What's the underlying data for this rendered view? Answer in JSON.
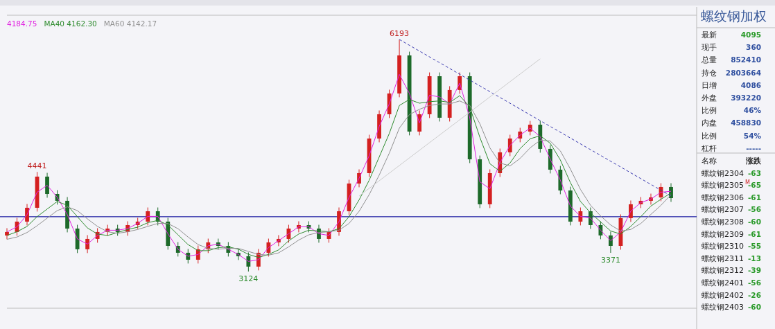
{
  "chart_data": [
    {
      "type": "candlestick",
      "categories": [
        null,
        null,
        null,
        null,
        null,
        null,
        null,
        null,
        null,
        null,
        null,
        null,
        null,
        null,
        null,
        null,
        null,
        null,
        null,
        null,
        null,
        null,
        null,
        null,
        null,
        null,
        null,
        null,
        null,
        null,
        null,
        null,
        null,
        null,
        null,
        null,
        null,
        null,
        null,
        null,
        null,
        null,
        null,
        null,
        null,
        null,
        null,
        null,
        null,
        null,
        null,
        null,
        null,
        null,
        null,
        null,
        null,
        null,
        null,
        null,
        null,
        null,
        null,
        null,
        null,
        null,
        null
      ],
      "ohlc": [
        [
          3600,
          3697,
          3550,
          3647
        ],
        [
          3647,
          3834,
          3597,
          3784
        ],
        [
          3784,
          4017,
          3734,
          3967
        ],
        [
          3967,
          4441,
          3917,
          4379
        ],
        [
          4379,
          4429,
          4100,
          4150
        ],
        [
          4150,
          4200,
          4009,
          4059
        ],
        [
          4059,
          4109,
          3642,
          3692
        ],
        [
          3692,
          3742,
          3368,
          3418
        ],
        [
          3418,
          3605,
          3368,
          3555
        ],
        [
          3555,
          3697,
          3505,
          3647
        ],
        [
          3647,
          3742,
          3597,
          3692
        ],
        [
          3692,
          3742,
          3597,
          3647
        ],
        [
          3647,
          3788,
          3597,
          3738
        ],
        [
          3738,
          3834,
          3688,
          3784
        ],
        [
          3784,
          3971,
          3734,
          3921
        ],
        [
          3921,
          3971,
          3734,
          3784
        ],
        [
          3784,
          3834,
          3413,
          3463
        ],
        [
          3463,
          3513,
          3322,
          3372
        ],
        [
          3372,
          3422,
          3230,
          3280
        ],
        [
          3280,
          3468,
          3230,
          3418
        ],
        [
          3418,
          3559,
          3368,
          3509
        ],
        [
          3509,
          3559,
          3413,
          3463
        ],
        [
          3463,
          3513,
          3322,
          3372
        ],
        [
          3372,
          3422,
          3276,
          3326
        ],
        [
          3326,
          3376,
          3124,
          3189
        ],
        [
          3189,
          3422,
          3139,
          3372
        ],
        [
          3372,
          3559,
          3322,
          3509
        ],
        [
          3509,
          3605,
          3459,
          3555
        ],
        [
          3555,
          3742,
          3505,
          3692
        ],
        [
          3692,
          3788,
          3642,
          3738
        ],
        [
          3738,
          3788,
          3642,
          3692
        ],
        [
          3692,
          3742,
          3505,
          3555
        ],
        [
          3555,
          3697,
          3505,
          3647
        ],
        [
          3647,
          3971,
          3597,
          3921
        ],
        [
          3921,
          4338,
          3871,
          4288
        ],
        [
          4288,
          4475,
          4238,
          4425
        ],
        [
          4425,
          4933,
          4375,
          4883
        ],
        [
          4883,
          5254,
          4833,
          5204
        ],
        [
          5204,
          5529,
          5154,
          5479
        ],
        [
          5479,
          6193,
          5429,
          5982
        ],
        [
          5982,
          6032,
          4925,
          4975
        ],
        [
          4975,
          5254,
          4925,
          5204
        ],
        [
          5204,
          5757,
          5154,
          5707
        ],
        [
          5707,
          5757,
          5108,
          5158
        ],
        [
          5158,
          5575,
          5108,
          5525
        ],
        [
          5525,
          5757,
          5475,
          5707
        ],
        [
          5707,
          5757,
          4558,
          4608
        ],
        [
          4608,
          4658,
          3963,
          4013
        ],
        [
          4013,
          4475,
          3963,
          4425
        ],
        [
          4425,
          4750,
          4375,
          4700
        ],
        [
          4700,
          4933,
          4650,
          4883
        ],
        [
          4883,
          5025,
          4833,
          4975
        ],
        [
          4975,
          5116,
          4925,
          5066
        ],
        [
          5066,
          5116,
          4696,
          4746
        ],
        [
          4746,
          4796,
          4421,
          4471
        ],
        [
          4471,
          4521,
          4146,
          4196
        ],
        [
          4196,
          4246,
          3734,
          3784
        ],
        [
          3784,
          3971,
          3734,
          3921
        ],
        [
          3921,
          3971,
          3688,
          3738
        ],
        [
          3738,
          3788,
          3551,
          3601
        ],
        [
          3601,
          3651,
          3371,
          3463
        ],
        [
          3463,
          3880,
          3413,
          3830
        ],
        [
          3830,
          4063,
          3780,
          4013
        ],
        [
          4013,
          4109,
          3963,
          4059
        ],
        [
          4059,
          4154,
          4009,
          4104
        ],
        [
          4104,
          4292,
          4054,
          4242
        ],
        [
          4242,
          4292,
          4045,
          4095
        ]
      ],
      "series": [
        {
          "type": "line",
          "name": "4184.75",
          "color": "#e020e0",
          "values": [
            3647,
            3716,
            3876,
            4173,
            4265,
            4105,
            3876,
            3555,
            3487,
            3601,
            3670,
            3670,
            3693,
            3761,
            3853,
            3853,
            3624,
            3418,
            3326,
            3349,
            3464,
            3486,
            3418,
            3349,
            3258,
            3281,
            3441,
            3532,
            3624,
            3715,
            3715,
            3624,
            3601,
            3784,
            4105,
            4357,
            4654,
            5044,
            5342,
            5731,
            5479,
            5090,
            5456,
            5433,
            5342,
            5616,
            5158,
            4311,
            4219,
            4563,
            4792,
            4929,
            5021,
            4906,
            4609,
            4334,
            3990,
            3853,
            3830,
            3670,
            3532,
            3647,
            3922,
            4036,
            4082,
            4173,
            4184.75
          ]
        },
        {
          "type": "line",
          "name": "MA40 4162.30",
          "color": "#2e8b2e",
          "values": [
            3600,
            3650,
            3720,
            3850,
            3950,
            4050,
            4000,
            3850,
            3700,
            3620,
            3600,
            3640,
            3680,
            3710,
            3770,
            3800,
            3740,
            3610,
            3480,
            3400,
            3400,
            3440,
            3450,
            3420,
            3350,
            3310,
            3350,
            3410,
            3530,
            3620,
            3670,
            3660,
            3650,
            3690,
            3850,
            4070,
            4330,
            4640,
            4950,
            5320,
            5400,
            5350,
            5370,
            5380,
            5360,
            5450,
            5300,
            4900,
            4550,
            4450,
            4560,
            4750,
            4880,
            4920,
            4820,
            4600,
            4300,
            4050,
            3900,
            3780,
            3660,
            3620,
            3720,
            3850,
            3990,
            4080,
            4162.3
          ]
        },
        {
          "type": "line",
          "name": "MA60 4142.17",
          "color": "#909090",
          "values": [
            3550,
            3580,
            3640,
            3730,
            3830,
            3930,
            3980,
            3930,
            3820,
            3720,
            3650,
            3630,
            3650,
            3680,
            3720,
            3760,
            3760,
            3690,
            3580,
            3480,
            3430,
            3420,
            3430,
            3430,
            3390,
            3350,
            3340,
            3370,
            3450,
            3540,
            3610,
            3640,
            3650,
            3670,
            3760,
            3920,
            4140,
            4400,
            4690,
            5020,
            5200,
            5270,
            5320,
            5340,
            5340,
            5380,
            5320,
            5080,
            4760,
            4560,
            4520,
            4620,
            4760,
            4860,
            4850,
            4720,
            4480,
            4210,
            4000,
            3860,
            3740,
            3660,
            3680,
            3760,
            3880,
            4000,
            4142.17
          ]
        },
        {
          "type": "line",
          "color": "#3a3ab0",
          "line_style": "dashed",
          "values": [
            null,
            null,
            null,
            null,
            null,
            null,
            null,
            null,
            null,
            null,
            null,
            null,
            null,
            null,
            null,
            null,
            null,
            null,
            null,
            null,
            null,
            null,
            null,
            null,
            null,
            null,
            null,
            null,
            null,
            null,
            null,
            null,
            null,
            null,
            null,
            null,
            null,
            null,
            null,
            6193,
            null,
            null,
            null,
            null,
            null,
            null,
            null,
            null,
            null,
            null,
            null,
            null,
            null,
            null,
            null,
            null,
            null,
            null,
            null,
            null,
            null,
            null,
            null,
            null,
            null,
            null,
            4123
          ]
        },
        {
          "type": "line",
          "color": "#cccccc",
          "values": [
            null,
            null,
            null,
            null,
            null,
            null,
            null,
            null,
            null,
            null,
            null,
            null,
            null,
            null,
            null,
            null,
            null,
            null,
            null,
            null,
            null,
            null,
            null,
            null,
            null,
            null,
            null,
            null,
            null,
            null,
            null,
            null,
            null,
            null,
            null,
            4123,
            null,
            null,
            null,
            null,
            null,
            null,
            null,
            null,
            null,
            null,
            null,
            null,
            null,
            null,
            null,
            null,
            null,
            5937,
            null,
            null,
            null,
            null,
            null,
            null,
            null,
            null,
            null,
            null,
            null,
            null,
            null
          ]
        }
      ],
      "ref_lines": [
        {
          "axis": "y",
          "value": 3848,
          "color": "#1a1aa0"
        }
      ],
      "annotations": [
        {
          "text": "6193",
          "y": 6193
        },
        {
          "text": "4441",
          "y": 4441
        },
        {
          "text": "3124",
          "y": 3124
        },
        {
          "text": "3371",
          "y": 3371
        }
      ]
    },
    {
      "type": "other",
      "title": "螺纹钢加权",
      "categories": [
        "最新",
        "现手",
        "总量",
        "持仓",
        "日增",
        "外盘",
        "比例",
        "内盘",
        "比例",
        "杠杆",
        "名称",
        "螺纹钢2304",
        "螺纹钢2305",
        "螺纹钢2306",
        "螺纹钢2307",
        "螺纹钢2308",
        "螺纹钢2309",
        "螺纹钢2310",
        "螺纹钢2311",
        "螺纹钢2312",
        "螺纹钢2401",
        "螺纹钢2402",
        "螺纹钢2403"
      ],
      "value_labels": [
        "4095",
        "360",
        "852410",
        "2803664",
        "4086",
        "393220",
        "46%",
        "458830",
        "54%",
        "-----",
        "涨跌",
        "-63",
        "-65",
        "-61",
        "-56",
        "-60",
        "-61",
        "-55",
        "-13",
        "-39",
        "-56",
        "-26",
        "-60"
      ],
      "colors": [
        "#2a9a2a",
        "#3050a0",
        "#3050a0",
        "#3050a0",
        "#3050a0",
        "#3050a0",
        "#3050a0",
        "#3050a0",
        "#3050a0",
        "#3050a0",
        "#222222",
        "#2a9a2a",
        "#2a9a2a",
        "#2a9a2a",
        "#2a9a2a",
        "#2a9a2a",
        "#2a9a2a",
        "#2a9a2a",
        "#2a9a2a",
        "#2a9a2a",
        "#2a9a2a",
        "#2a9a2a",
        "#2a9a2a"
      ],
      "annotations": [
        {
          "text": "M",
          "x": "螺纹钢2305"
        }
      ]
    }
  ]
}
